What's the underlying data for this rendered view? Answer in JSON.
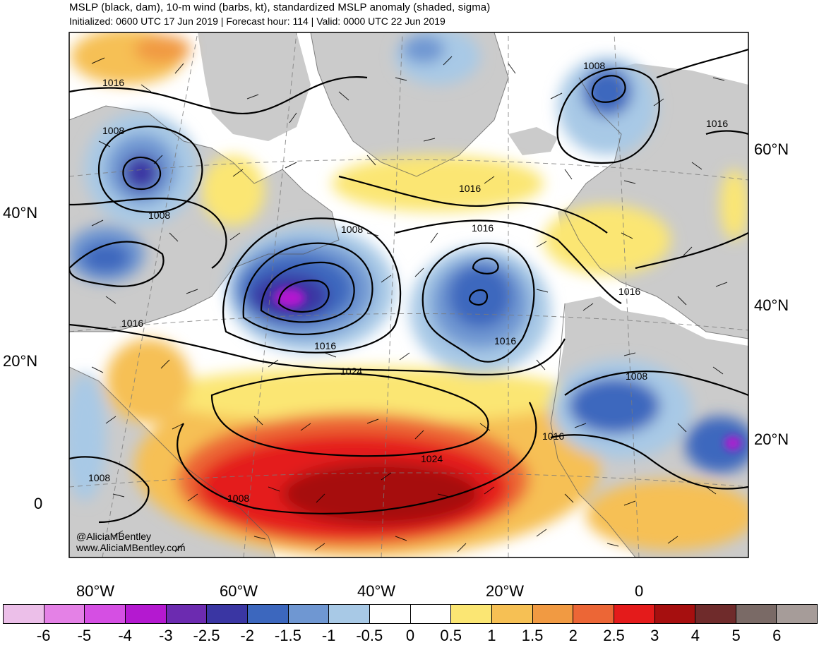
{
  "title": {
    "line1": "MSLP (black, dam), 10-m wind (barbs, kt), standardized MSLP anomaly (shaded, sigma)",
    "line2": "Initialized: 0600 UTC 17 Jun 2019 | Forecast hour: 114 | Valid: 0000 UTC 22 Jun 2019"
  },
  "axes": {
    "left_lat": [
      "40°N",
      "20°N",
      "0"
    ],
    "right_lat": [
      "60°N",
      "40°N",
      "20°N"
    ],
    "bottom_lon": [
      "80°W",
      "60°W",
      "40°W",
      "20°W",
      "0"
    ]
  },
  "contour_labels": [
    "1016",
    "1008",
    "1008",
    "1016",
    "1008",
    "1008",
    "1016",
    "1016",
    "1008",
    "1016",
    "1016",
    "1008",
    "1024",
    "1024",
    "1016",
    "1008",
    "1016",
    "1016"
  ],
  "credits": {
    "handle": "@AliciaMBentley",
    "site": "www.AliciaMBentley.com"
  },
  "colorbar": {
    "colors": [
      "#ecbfe9",
      "#e481e6",
      "#d54fe3",
      "#b419d0",
      "#6c2bb0",
      "#3a36a3",
      "#3c67be",
      "#6f97d2",
      "#a8c9e6",
      "#ffffff",
      "#ffffff",
      "#fbe673",
      "#f6c054",
      "#f19a42",
      "#ec6636",
      "#e41b1b",
      "#a60f0f",
      "#6f2b2b",
      "#7a6a66",
      "#a69c99"
    ],
    "labels": [
      "-6",
      "-5",
      "-4",
      "-3",
      "-2.5",
      "-2",
      "-1.5",
      "-1",
      "-0.5",
      "0",
      "0.5",
      "1",
      "1.5",
      "2",
      "2.5",
      "3",
      "4",
      "5",
      "6"
    ]
  }
}
